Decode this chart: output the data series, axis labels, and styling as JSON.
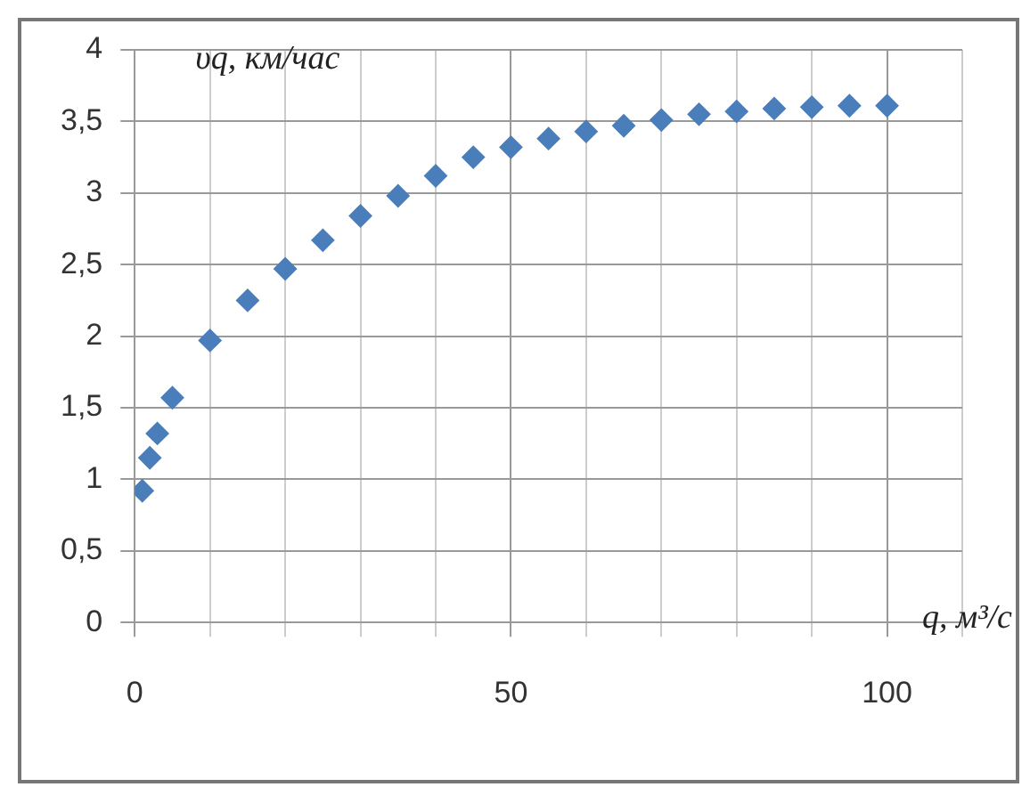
{
  "chart_data": {
    "type": "scatter",
    "xlabel": "q, м³/с",
    "ylabel": "υq, км/час",
    "x": [
      1,
      2,
      3,
      5,
      10,
      15,
      20,
      25,
      30,
      35,
      40,
      45,
      50,
      55,
      60,
      65,
      70,
      75,
      80,
      85,
      90,
      95,
      100
    ],
    "series": [
      {
        "color": "#4a7ebb",
        "values": [
          0.92,
          1.15,
          1.32,
          1.57,
          1.97,
          2.25,
          2.47,
          2.67,
          2.84,
          2.98,
          3.12,
          3.25,
          3.32,
          3.38,
          3.43,
          3.47,
          3.51,
          3.55,
          3.57,
          3.59,
          3.6,
          3.61,
          3.61
        ]
      }
    ],
    "xlim": [
      0,
      110
    ],
    "ylim": [
      0,
      4
    ],
    "xticks": [
      0,
      {
        "value": 10,
        "label": null
      },
      {
        "value": 20,
        "label": null
      },
      {
        "value": 30,
        "label": null
      },
      {
        "value": 40,
        "label": null
      },
      50,
      {
        "value": 60,
        "label": null
      },
      {
        "value": 70,
        "label": null
      },
      {
        "value": 80,
        "label": null
      },
      {
        "value": 90,
        "label": null
      },
      100,
      {
        "value": 110,
        "label": null
      }
    ],
    "yticks": [
      0,
      {
        "value": 0.5,
        "label": "0,5"
      },
      1,
      {
        "value": 1.5,
        "label": "1,5"
      },
      2,
      {
        "value": 2.5,
        "label": "2,5"
      },
      3,
      {
        "value": 3.5,
        "label": "3,5"
      },
      4
    ],
    "grid": true,
    "legend": false,
    "marker": "diamond"
  }
}
